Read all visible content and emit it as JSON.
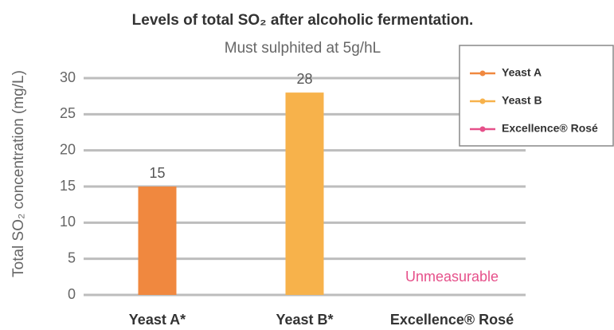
{
  "chart_data": {
    "type": "bar",
    "title": "Levels of total SO₂ after alcoholic fermentation.",
    "subtitle": "Must sulphited at 5g/hL",
    "y_label": "Total SO₂ concentration (mg/L)",
    "categories": [
      "Yeast A*",
      "Yeast B*",
      "Excellence® Rosé"
    ],
    "values": [
      15,
      28,
      null
    ],
    "colors": [
      "#f0883f",
      "#f7b24b",
      "#e6508a"
    ],
    "annotation": "Unmeasurable",
    "ylim": [
      0,
      30
    ],
    "yticks": [
      0,
      5,
      10,
      15,
      20,
      25,
      30
    ],
    "grid": true,
    "legend": {
      "labels": [
        "Yeast A",
        "Yeast B",
        "Excellence® Rosé"
      ],
      "position": "upper right"
    }
  }
}
